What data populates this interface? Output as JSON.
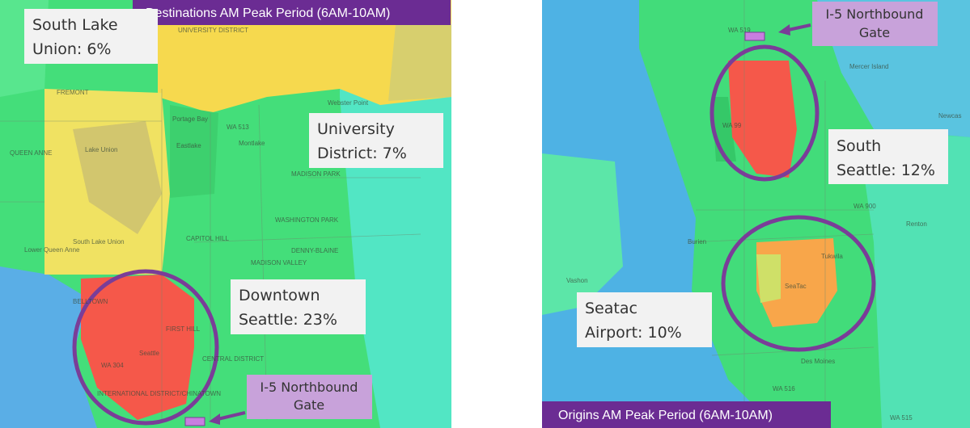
{
  "left_map": {
    "title": "Destinations AM Peak Period (6AM-10AM)",
    "callouts": [
      {
        "lines": [
          "South Lake",
          "Union: 6%"
        ]
      },
      {
        "lines": [
          "University",
          "District: 7%"
        ]
      },
      {
        "lines": [
          "Downtown",
          "Seattle: 23%"
        ]
      }
    ],
    "gate": {
      "lines": [
        "I-5 Northbound",
        "Gate"
      ]
    },
    "place_labels": [
      "FREMONT",
      "UNIVERSITY DISTRICT",
      "Webster Point",
      "QUEEN ANNE",
      "Lake Union",
      "Portage Bay",
      "Eastlake",
      "WA 513",
      "Montlake",
      "MADISON PARK",
      "WASHINGTON PARK",
      "South Lake Union",
      "Lower Queen Anne",
      "CAPITOL HILL",
      "DENNY-BLAINE",
      "MADISON VALLEY",
      "BELLTOWN",
      "FIRST HILL",
      "Seattle",
      "WA 304",
      "CENTRAL DISTRICT",
      "INTERNATIONAL DISTRICT/CHINATOWN"
    ]
  },
  "right_map": {
    "title": "Origins AM Peak Period (6AM-10AM)",
    "callouts": [
      {
        "lines": [
          "South",
          "Seattle: 12%"
        ]
      },
      {
        "lines": [
          "Seatac",
          "Airport: 10%"
        ]
      }
    ],
    "gate": {
      "lines": [
        "I-5 Northbound",
        "Gate"
      ]
    },
    "place_labels": [
      "WA 519",
      "Mercer Island",
      "WA 99",
      "Newcas",
      "WA 900",
      "Renton",
      "Burien",
      "Tukwila",
      "Vashon",
      "SeaTac",
      "Des Moines",
      "WA 516",
      "WA 515"
    ]
  }
}
